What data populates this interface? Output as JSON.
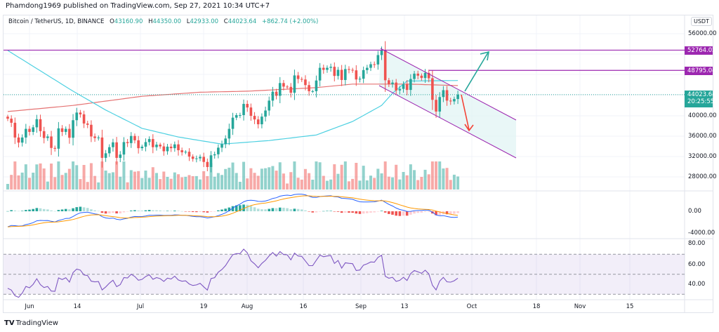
{
  "header": {
    "text": "Phamdong1969 published on TradingView.com, Sep 27, 2021 10:34 UTC+7"
  },
  "legend": {
    "symbol": "Bitcoin / TetherUS, 1D, BINANCE",
    "open_label": "O",
    "open": "43160.90",
    "high_label": "H",
    "high": "44350.00",
    "low_label": "L",
    "low": "42933.00",
    "close_label": "C",
    "close": "44023.64",
    "change": "+862.74 (+2.00%)"
  },
  "price_axis": {
    "currency": "USDT",
    "ticks": [
      "56000.00",
      "40000.00",
      "36000.00",
      "32000.00",
      "28000.00"
    ],
    "badges": {
      "resistance_1": "52764.02",
      "resistance_2": "48795.04",
      "last_price": "44023.64",
      "countdown": "20:25:55"
    },
    "macd_ticks": [
      "0.00",
      "-4000.00"
    ],
    "rsi_ticks": [
      "80.00",
      "60.00",
      "40.00"
    ]
  },
  "time_axis": [
    "Jun",
    "14",
    "Jul",
    "19",
    "Aug",
    "16",
    "Sep",
    "13",
    "Oct",
    "18",
    "Nov",
    "15"
  ],
  "footer": {
    "logo_mark": "TV",
    "brand": "TradingView"
  },
  "colors": {
    "up": "#26a69a",
    "down": "#ef5350",
    "drawing": "#9c27b0",
    "ma_fast": "#4dd0e1",
    "ma_slow": "#e57373",
    "macd": "#2962ff",
    "signal": "#ff9800",
    "rsi": "#7e57c2"
  },
  "chart_data": {
    "type": "candlestick",
    "symbol": "BTCUSDT",
    "interval": "1D",
    "start_date": "2021-05-26",
    "closes": [
      39300,
      38500,
      35600,
      34600,
      35600,
      37300,
      36700,
      37600,
      39200,
      36850,
      35500,
      35800,
      33550,
      33400,
      37400,
      36700,
      37300,
      35550,
      39000,
      40500,
      40150,
      38350,
      38100,
      35800,
      35500,
      35600,
      31600,
      32500,
      33700,
      34650,
      31600,
      32250,
      34700,
      34500,
      35900,
      35050,
      33500,
      33800,
      34700,
      35300,
      33700,
      34200,
      33850,
      32900,
      33800,
      33500,
      34250,
      33100,
      32700,
      32800,
      31850,
      31400,
      31500,
      31800,
      30800,
      29800,
      32100,
      32300,
      33600,
      34300,
      35400,
      37300,
      39500,
      40000,
      40000,
      42200,
      41500,
      39850,
      39150,
      38200,
      39700,
      40900,
      42850,
      44600,
      43800,
      46300,
      45600,
      45550,
      44400,
      47800,
      47100,
      47000,
      45900,
      44700,
      44700,
      46800,
      49300,
      48900,
      49300,
      49500,
      47700,
      48900,
      46900,
      49050,
      48900,
      48800,
      47000,
      47150,
      48850,
      49300,
      50000,
      49950,
      51800,
      52700,
      46850,
      46100,
      46400,
      44850,
      45150,
      46050,
      44950,
      47100,
      48150,
      47750,
      47300,
      48300,
      47250,
      43000,
      40700,
      43550,
      44900,
      42850,
      42700,
      43160.9,
      44023.64
    ],
    "ma_fast_anchors": [
      [
        0,
        52700
      ],
      [
        18,
        44700
      ],
      [
        27,
        41000
      ],
      [
        37,
        37400
      ],
      [
        47,
        35700
      ],
      [
        59,
        34300
      ],
      [
        72,
        35000
      ],
      [
        85,
        36100
      ],
      [
        95,
        38750
      ],
      [
        103,
        41900
      ],
      [
        106,
        44300
      ],
      [
        110,
        46700
      ],
      [
        124,
        46800
      ]
    ],
    "ma_slow_anchors": [
      [
        0,
        40700
      ],
      [
        18,
        41900
      ],
      [
        37,
        43700
      ],
      [
        53,
        44500
      ],
      [
        66,
        44700
      ],
      [
        85,
        45400
      ],
      [
        95,
        46100
      ],
      [
        110,
        46100
      ],
      [
        124,
        45800
      ]
    ],
    "horizontal_levels": [
      52764.02,
      48795.04
    ],
    "price_range": [
      26000,
      57000
    ],
    "macd_seed": {
      "ema12": 38000,
      "ema26": 41000,
      "signal": -2700
    },
    "rsi_seed": {
      "avg_gain": 450,
      "avg_loss": 800
    },
    "rsi_levels": [
      70,
      50,
      30
    ]
  }
}
